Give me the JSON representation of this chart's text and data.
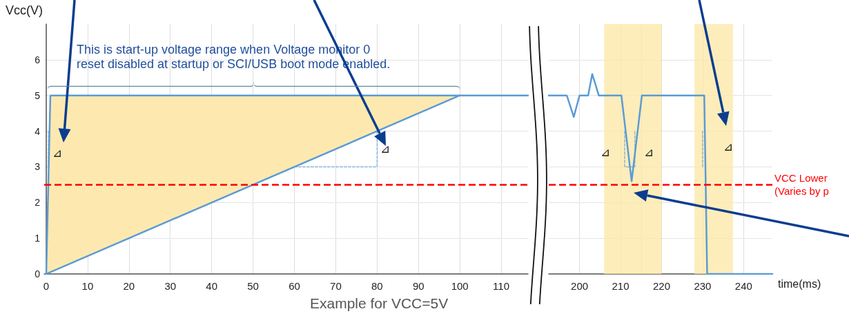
{
  "chart_data": [
    {
      "type": "line",
      "ylabel": "Vcc(V)",
      "xlim": [
        -0.5,
        116.5
      ],
      "ylim": [
        0,
        7
      ],
      "xticks": [
        0,
        10,
        20,
        30,
        40,
        50,
        60,
        70,
        80,
        90,
        100,
        110
      ],
      "yticks": [
        0,
        1,
        2,
        3,
        4,
        5,
        6
      ],
      "grid": true,
      "marker": "none",
      "series": [
        {
          "color": "#5b9bd5",
          "x": [
            0,
            1,
            116.5
          ],
          "values": [
            0,
            5,
            5
          ]
        },
        {
          "color": "#5b9bd5",
          "x": [
            0,
            1,
            100
          ],
          "values": [
            0,
            0.05,
            5
          ],
          "lower": [
            0,
            0.05,
            5
          ],
          "upper": [
            0,
            5,
            5
          ]
        },
        {
          "color": "#5b9bd5",
          "line_style": "dashed",
          "x": [
            0.5,
            0.5
          ],
          "values": [
            3,
            4
          ]
        },
        {
          "color": "#5b9bd5",
          "line_style": "dashed",
          "x": [
            60,
            80,
            80
          ],
          "values": [
            3,
            3,
            4
          ]
        }
      ],
      "ref_lines": [
        {
          "axis": "y",
          "value": 2.5,
          "color": "#ff0000",
          "line_style": "dashed"
        }
      ],
      "annotations": [
        "This is start-up voltage range when Voltage monitor 0 reset disabled at startup or SCI/USB boot mode enabled.",
        "⊿",
        "⊿",
        "Example for VCC=5V"
      ]
    },
    {
      "type": "line",
      "xlabel": "time(ms)",
      "xlim": [
        192.5,
        247
      ],
      "ylim": [
        0,
        7
      ],
      "xticks": [
        200,
        210,
        {
          "value": 215,
          "label": null
        },
        220,
        230,
        240
      ],
      "yticks": [
        0,
        1,
        2,
        3,
        4,
        5,
        6
      ],
      "tick_labels": "x",
      "grid": true,
      "marker": "none",
      "series": [
        {
          "color": "#5b9bd5",
          "x": [
            192.5,
            196.9,
            198.6,
            200,
            202.1,
            203.1,
            204.7,
            210.2,
            212.7,
            215.2,
            230.4,
            231.1,
            247
          ],
          "values": [
            5,
            5,
            4.4,
            5,
            5,
            5.6,
            5,
            5,
            2.6,
            5,
            5,
            0,
            0
          ]
        },
        {
          "color": "#5b9bd5",
          "line_style": "dashed",
          "x": [
            211,
            211,
            213.5,
            213.5
          ],
          "values": [
            4,
            3,
            3,
            4
          ]
        },
        {
          "color": "#5b9bd5",
          "line_style": "dashed",
          "x": [
            230,
            230
          ],
          "values": [
            3,
            4
          ]
        }
      ],
      "ref_lines": [
        {
          "axis": "y",
          "value": 2.5,
          "label": "VCC Lower\n(Varies by p",
          "color": "#ff0000",
          "line_style": "dashed"
        }
      ],
      "bands": [
        {
          "axis": "x",
          "from": 206,
          "to": 220,
          "color": "#fde9a9"
        },
        {
          "axis": "x",
          "from": 228,
          "to": 237.4,
          "color": "#fde9a9"
        }
      ],
      "annotations": [
        "⊿",
        "⊿",
        "⊿"
      ]
    }
  ]
}
